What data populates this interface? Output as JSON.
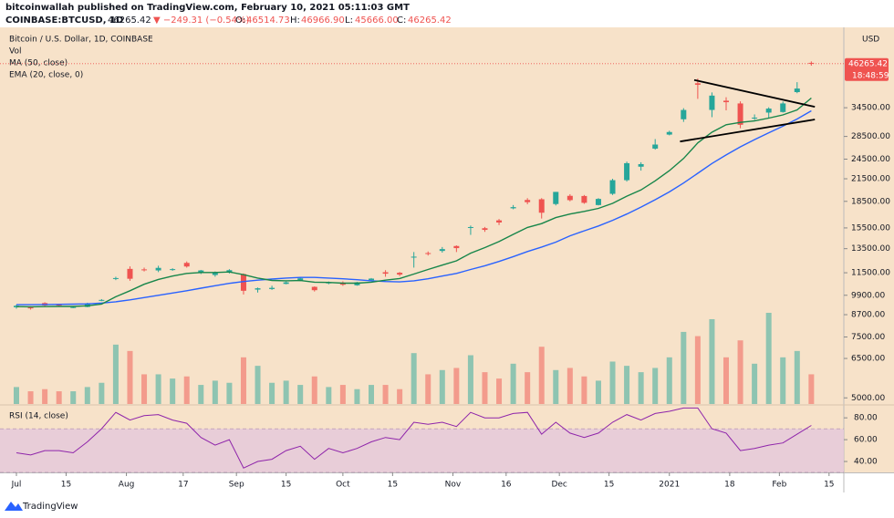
{
  "header": {
    "author_line": "bitcoinwallah published on TradingView.com, February 10, 2021 05:11:03 GMT",
    "symbol": "COINBASE:BTCUSD, 1D",
    "last": "46265.42",
    "change": "▼ −249.31 (−0.54%)",
    "open_label": "O:",
    "open": "46514.73",
    "high_label": "H:",
    "high": "46966.90",
    "low_label": "L:",
    "low": "45666.00",
    "close_label": "C:",
    "close": "46265.42",
    "countdown": "18:48:59",
    "currency": "USD",
    "footer": "TradingView"
  },
  "chart_data": {
    "type": "candlestick",
    "title": "Bitcoin / U.S. Dollar, 1D, COINBASE",
    "log_scale": true,
    "grid": false,
    "x": [
      "Jul 1",
      "Jul 5",
      "Jul 9",
      "Jul 13",
      "Jul 17",
      "Jul 21",
      "Jul 25",
      "Jul 29",
      "Aug 2",
      "Aug 6",
      "Aug 10",
      "Aug 14",
      "Aug 18",
      "Aug 22",
      "Aug 26",
      "Aug 30",
      "Sep 3",
      "Sep 7",
      "Sep 11",
      "Sep 15",
      "Sep 19",
      "Sep 23",
      "Sep 27",
      "Oct 1",
      "Oct 5",
      "Oct 9",
      "Oct 13",
      "Oct 17",
      "Oct 21",
      "Oct 25",
      "Oct 29",
      "Nov 2",
      "Nov 6",
      "Nov 10",
      "Nov 14",
      "Nov 18",
      "Nov 22",
      "Nov 26",
      "Nov 30",
      "Dec 4",
      "Dec 8",
      "Dec 12",
      "Dec 16",
      "Dec 20",
      "Dec 24",
      "Dec 28",
      "Jan 1",
      "Jan 5",
      "Jan 9",
      "Jan 13",
      "Jan 17",
      "Jan 21",
      "Jan 25",
      "Jan 29",
      "Feb 2",
      "Feb 6",
      "Feb 10"
    ],
    "open": [
      9140,
      9130,
      9400,
      9300,
      9130,
      9160,
      9550,
      11080,
      11800,
      11760,
      11680,
      11770,
      12280,
      11530,
      11330,
      11520,
      11400,
      10280,
      10320,
      10680,
      10930,
      10470,
      10720,
      10770,
      10580,
      10940,
      11540,
      11500,
      12800,
      13110,
      13300,
      13740,
      15580,
      15470,
      16300,
      17660,
      18670,
      18760,
      18170,
      19190,
      19170,
      18050,
      19450,
      21300,
      23300,
      26280,
      28850,
      31950,
      40600,
      34000,
      36150,
      35500,
      32280,
      33400,
      33530,
      38280,
      46514.73
    ],
    "high": [
      9300,
      9200,
      9450,
      9350,
      9200,
      9420,
      9650,
      11200,
      12000,
      11900,
      12050,
      11850,
      12400,
      11720,
      11600,
      11780,
      11450,
      10420,
      10550,
      10850,
      11150,
      10500,
      10850,
      10860,
      10820,
      11100,
      11700,
      11560,
      13200,
      13250,
      13650,
      13800,
      15750,
      15600,
      16450,
      18050,
      18900,
      18900,
      19700,
      19400,
      19300,
      18900,
      21500,
      24100,
      24000,
      28000,
      29600,
      34400,
      41900,
      38200,
      37000,
      36000,
      33000,
      34600,
      35950,
      40900,
      46966.9
    ],
    "low": [
      9050,
      9000,
      9200,
      9170,
      9090,
      9140,
      9520,
      10950,
      10900,
      11600,
      11550,
      11650,
      11900,
      11400,
      11200,
      11440,
      9950,
      10080,
      10260,
      10650,
      10880,
      10150,
      10650,
      10540,
      10550,
      10890,
      11200,
      11250,
      11900,
      12900,
      13150,
      13200,
      14800,
      15100,
      15800,
      17550,
      18150,
      16500,
      18000,
      18500,
      18200,
      18000,
      19300,
      21100,
      22700,
      26100,
      28700,
      31400,
      36600,
      32400,
      33900,
      30100,
      31800,
      32100,
      33400,
      38000,
      45666
    ],
    "close": [
      9230,
      9070,
      9250,
      9240,
      9150,
      9380,
      9600,
      11100,
      11050,
      11750,
      11880,
      11780,
      11990,
      11680,
      11480,
      11700,
      10200,
      10370,
      10400,
      10790,
      11080,
      10240,
      10780,
      10620,
      10790,
      11060,
      11430,
      11360,
      12800,
      13030,
      13460,
      13550,
      15590,
      15300,
      16070,
      17800,
      18400,
      17150,
      19700,
      18650,
      18320,
      18800,
      21300,
      23850,
      23700,
      27000,
      29350,
      33990,
      40200,
      37400,
      35800,
      30800,
      32300,
      34300,
      35500,
      39200,
      46265.42
    ],
    "up_color": "#26a69a",
    "down_color": "#ef5350",
    "series": [
      {
        "name": "MA (50, close)",
        "color": "#2962ff",
        "values": [
          9300,
          9300,
          9310,
          9320,
          9330,
          9350,
          9400,
          9480,
          9600,
          9750,
          9900,
          10050,
          10200,
          10380,
          10550,
          10720,
          10850,
          10950,
          11030,
          11100,
          11150,
          11150,
          11100,
          11050,
          10980,
          10900,
          10850,
          10820,
          10900,
          11050,
          11250,
          11450,
          11750,
          12050,
          12400,
          12800,
          13250,
          13650,
          14100,
          14700,
          15200,
          15700,
          16300,
          17000,
          17800,
          18700,
          19700,
          20900,
          22300,
          23800,
          25200,
          26600,
          27900,
          29200,
          30500,
          32000,
          33800
        ]
      },
      {
        "name": "EMA (20, close, 0)",
        "color": "#17864a",
        "values": [
          9180,
          9170,
          9180,
          9190,
          9190,
          9230,
          9330,
          9800,
          10200,
          10650,
          11000,
          11250,
          11450,
          11520,
          11520,
          11560,
          11350,
          11100,
          10930,
          10900,
          10920,
          10800,
          10780,
          10730,
          10730,
          10800,
          10950,
          11070,
          11400,
          11750,
          12100,
          12450,
          13100,
          13600,
          14150,
          14850,
          15550,
          15950,
          16600,
          17000,
          17300,
          17650,
          18250,
          19150,
          19950,
          21200,
          22700,
          24600,
          27300,
          29300,
          30800,
          31300,
          31600,
          32200,
          32900,
          34000,
          36800
        ]
      }
    ],
    "volume": {
      "name": "Vol",
      "values": [
        8,
        6,
        7,
        6,
        6,
        8,
        10,
        28,
        25,
        14,
        14,
        12,
        13,
        9,
        11,
        10,
        22,
        18,
        10,
        11,
        9,
        13,
        8,
        9,
        7,
        9,
        9,
        7,
        24,
        14,
        16,
        17,
        23,
        15,
        12,
        19,
        15,
        27,
        16,
        17,
        13,
        11,
        20,
        18,
        15,
        17,
        22,
        34,
        32,
        40,
        22,
        30,
        19,
        43,
        22,
        25,
        14
      ]
    },
    "trendlines": [
      {
        "x": [
          "Jan 8",
          "Feb 11"
        ],
        "y": [
          41500,
          34700
        ]
      },
      {
        "x": [
          "Jan 4",
          "Feb 11"
        ],
        "y": [
          27550,
          31900
        ]
      }
    ],
    "ylim": [
      4800,
      58200
    ],
    "yticks": [
      {
        "value": 5000,
        "label": "5000.00"
      },
      {
        "value": 6500,
        "label": "6500.00"
      },
      {
        "value": 7500,
        "label": "7500.00"
      },
      {
        "value": 8700,
        "label": "8700.00"
      },
      {
        "value": 9900,
        "label": "9900.00"
      },
      {
        "value": 11500,
        "label": "11500.00"
      },
      {
        "value": 13500,
        "label": "13500.00"
      },
      {
        "value": 15500,
        "label": "15500.00"
      },
      {
        "value": 18500,
        "label": "18500.00"
      },
      {
        "value": 21500,
        "label": "21500.00"
      },
      {
        "value": 24500,
        "label": "24500.00"
      },
      {
        "value": 28500,
        "label": "28500.00"
      },
      {
        "value": 34500,
        "label": "34500.00"
      }
    ],
    "xticks": [
      {
        "value": "Jul 1",
        "label": "Jul"
      },
      {
        "value": "Jul 15",
        "label": "15"
      },
      {
        "value": "Aug 1",
        "label": "Aug"
      },
      {
        "value": "Aug 17",
        "label": "17"
      },
      {
        "value": "Sep 1",
        "label": "Sep"
      },
      {
        "value": "Sep 15",
        "label": "15"
      },
      {
        "value": "Oct 1",
        "label": "Oct"
      },
      {
        "value": "Oct 15",
        "label": "15"
      },
      {
        "value": "Nov 1",
        "label": "Nov"
      },
      {
        "value": "Nov 16",
        "label": "16"
      },
      {
        "value": "Dec 1",
        "label": "Dec"
      },
      {
        "value": "Dec 15",
        "label": "15"
      },
      {
        "value": "Jan 1",
        "label": "2021"
      },
      {
        "value": "Jan 18",
        "label": "18"
      },
      {
        "value": "Feb 1",
        "label": "Feb"
      },
      {
        "value": "Feb 15",
        "label": "15"
      }
    ],
    "rsi": {
      "name": "RSI (14, close)",
      "color": "#8e24aa",
      "band": [
        30,
        70
      ],
      "ylim": [
        30,
        91
      ],
      "yticks": [
        {
          "value": 40,
          "label": "40.00"
        },
        {
          "value": 60,
          "label": "60.00"
        },
        {
          "value": 80,
          "label": "80.00"
        }
      ],
      "values": [
        48,
        46,
        50,
        50,
        48,
        58,
        70,
        85,
        78,
        82,
        83,
        78,
        75,
        62,
        55,
        60,
        34,
        40,
        42,
        50,
        54,
        42,
        52,
        48,
        52,
        58,
        62,
        60,
        76,
        74,
        76,
        72,
        85,
        80,
        80,
        84,
        85,
        65,
        76,
        66,
        62,
        66,
        76,
        83,
        78,
        84,
        86,
        89,
        89,
        70,
        66,
        50,
        52,
        55,
        57,
        65,
        73
      ]
    }
  }
}
